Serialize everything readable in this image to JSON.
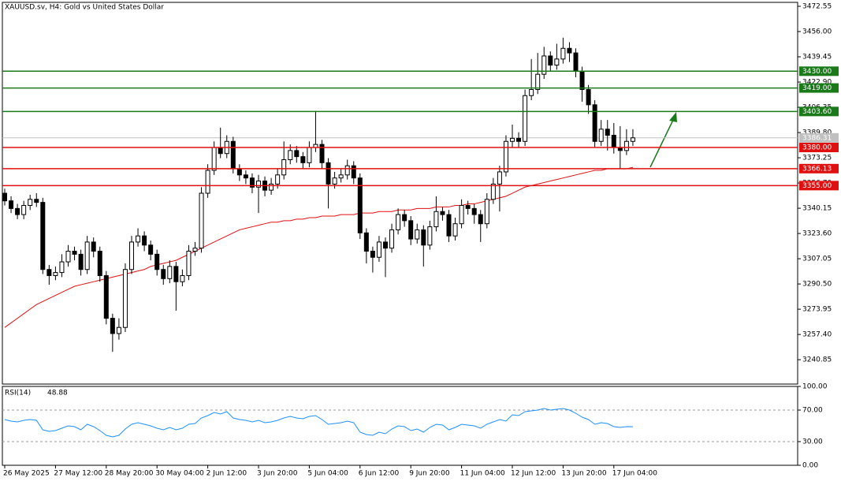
{
  "chart_data": {
    "type": "candlestick",
    "title": "XAUUSD.sv, H4:  Gold vs United States Dollar",
    "x": [
      "26 May 2025",
      null,
      null,
      null,
      null,
      null,
      null,
      null,
      "27 May 12:00",
      null,
      null,
      null,
      null,
      null,
      null,
      null,
      "28 May 20:00",
      null,
      null,
      null,
      null,
      null,
      null,
      null,
      "30 May 04:00",
      null,
      null,
      null,
      null,
      null,
      null,
      null,
      "2 Jun 12:00",
      null,
      null,
      null,
      null,
      null,
      null,
      null,
      "3 Jun 20:00",
      null,
      null,
      null,
      null,
      null,
      null,
      null,
      "5 Jun 04:00",
      null,
      null,
      null,
      null,
      null,
      null,
      null,
      "6 Jun 12:00",
      null,
      null,
      null,
      null,
      null,
      null,
      null,
      "9 Jun 20:00",
      null,
      null,
      null,
      null,
      null,
      null,
      null,
      "11 Jun 04:00",
      null,
      null,
      null,
      null,
      null,
      null,
      null,
      "12 Jun 12:00",
      null,
      null,
      null,
      null,
      null,
      null,
      null,
      "13 Jun 20:00",
      null,
      null,
      null,
      null,
      null,
      null,
      null,
      "17 Jun 04:00",
      null,
      null,
      null
    ],
    "candles": [
      [
        3350,
        3353,
        3342,
        3345
      ],
      [
        3345,
        3348,
        3337,
        3340
      ],
      [
        3340,
        3343,
        3333,
        3336
      ],
      [
        3336,
        3345,
        3333,
        3342
      ],
      [
        3342,
        3349,
        3339,
        3346
      ],
      [
        3346,
        3350,
        3341,
        3344
      ],
      [
        3344,
        3347,
        3297,
        3300
      ],
      [
        3300,
        3303,
        3290,
        3296
      ],
      [
        3296,
        3302,
        3293,
        3298
      ],
      [
        3298,
        3310,
        3295,
        3305
      ],
      [
        3305,
        3316,
        3302,
        3312
      ],
      [
        3312,
        3315,
        3306,
        3310
      ],
      [
        3310,
        3313,
        3296,
        3300
      ],
      [
        3300,
        3322,
        3297,
        3318
      ],
      [
        3318,
        3321,
        3308,
        3312
      ],
      [
        3312,
        3315,
        3292,
        3296
      ],
      [
        3296,
        3299,
        3264,
        3268
      ],
      [
        3268,
        3271,
        3246,
        3258
      ],
      [
        3258,
        3268,
        3254,
        3262
      ],
      [
        3262,
        3304,
        3259,
        3300
      ],
      [
        3300,
        3322,
        3297,
        3318
      ],
      [
        3318,
        3327,
        3315,
        3322
      ],
      [
        3322,
        3325,
        3312,
        3316
      ],
      [
        3316,
        3319,
        3306,
        3310
      ],
      [
        3310,
        3313,
        3296,
        3300
      ],
      [
        3300,
        3303,
        3290,
        3294
      ],
      [
        3294,
        3306,
        3291,
        3302
      ],
      [
        3302,
        3305,
        3273,
        3292
      ],
      [
        3292,
        3300,
        3289,
        3296
      ],
      [
        3296,
        3316,
        3293,
        3312
      ],
      [
        3312,
        3318,
        3309,
        3314
      ],
      [
        3314,
        3354,
        3311,
        3350
      ],
      [
        3350,
        3369,
        3347,
        3365
      ],
      [
        3365,
        3384,
        3362,
        3380
      ],
      [
        3380,
        3393,
        3373,
        3376
      ],
      [
        3376,
        3388,
        3373,
        3384
      ],
      [
        3384,
        3387,
        3363,
        3366
      ],
      [
        3366,
        3369,
        3358,
        3362
      ],
      [
        3362,
        3365,
        3356,
        3360
      ],
      [
        3360,
        3363,
        3350,
        3354
      ],
      [
        3354,
        3362,
        3337,
        3358
      ],
      [
        3358,
        3361,
        3348,
        3352
      ],
      [
        3352,
        3360,
        3349,
        3356
      ],
      [
        3356,
        3366,
        3353,
        3362
      ],
      [
        3362,
        3384,
        3359,
        3372
      ],
      [
        3372,
        3382,
        3369,
        3378
      ],
      [
        3378,
        3381,
        3370,
        3374
      ],
      [
        3374,
        3377,
        3366,
        3370
      ],
      [
        3370,
        3384,
        3367,
        3380
      ],
      [
        3380,
        3404,
        3377,
        3382
      ],
      [
        3382,
        3385,
        3366,
        3370
      ],
      [
        3370,
        3373,
        3340,
        3356
      ],
      [
        3356,
        3364,
        3353,
        3360
      ],
      [
        3360,
        3366,
        3357,
        3362
      ],
      [
        3362,
        3372,
        3359,
        3368
      ],
      [
        3368,
        3371,
        3356,
        3360
      ],
      [
        3360,
        3363,
        3320,
        3324
      ],
      [
        3324,
        3327,
        3304,
        3312
      ],
      [
        3312,
        3315,
        3298,
        3308
      ],
      [
        3308,
        3322,
        3305,
        3318
      ],
      [
        3318,
        3321,
        3295,
        3314
      ],
      [
        3314,
        3330,
        3311,
        3326
      ],
      [
        3326,
        3340,
        3323,
        3336
      ],
      [
        3336,
        3339,
        3328,
        3332
      ],
      [
        3332,
        3335,
        3316,
        3320
      ],
      [
        3320,
        3330,
        3317,
        3326
      ],
      [
        3326,
        3329,
        3302,
        3316
      ],
      [
        3316,
        3332,
        3313,
        3328
      ],
      [
        3328,
        3348,
        3325,
        3338
      ],
      [
        3338,
        3341,
        3332,
        3336
      ],
      [
        3336,
        3339,
        3318,
        3322
      ],
      [
        3322,
        3334,
        3319,
        3330
      ],
      [
        3330,
        3346,
        3327,
        3342
      ],
      [
        3342,
        3345,
        3336,
        3340
      ],
      [
        3340,
        3343,
        3330,
        3336
      ],
      [
        3336,
        3339,
        3318,
        3330
      ],
      [
        3330,
        3350,
        3327,
        3346
      ],
      [
        3346,
        3360,
        3343,
        3356
      ],
      [
        3356,
        3368,
        3338,
        3364
      ],
      [
        3364,
        3388,
        3361,
        3384
      ],
      [
        3384,
        3395,
        3380,
        3386
      ],
      [
        3386,
        3390,
        3380,
        3384
      ],
      [
        3384,
        3418,
        3381,
        3414
      ],
      [
        3414,
        3438,
        3411,
        3418
      ],
      [
        3418,
        3442,
        3415,
        3428
      ],
      [
        3428,
        3446,
        3425,
        3440
      ],
      [
        3440,
        3443,
        3430,
        3434
      ],
      [
        3434,
        3448,
        3431,
        3438
      ],
      [
        3438,
        3452,
        3435,
        3445
      ],
      [
        3445,
        3449,
        3436,
        3442
      ],
      [
        3442,
        3445,
        3426,
        3430
      ],
      [
        3430,
        3433,
        3410,
        3418
      ],
      [
        3418,
        3421,
        3402,
        3408
      ],
      [
        3408,
        3411,
        3380,
        3384
      ],
      [
        3384,
        3398,
        3381,
        3392
      ],
      [
        3392,
        3398,
        3378,
        3388
      ],
      [
        3388,
        3396,
        3376,
        3380
      ],
      [
        3380,
        3394,
        3366,
        3378
      ],
      [
        3378,
        3392,
        3375,
        3384
      ],
      [
        3384,
        3392,
        3381,
        3386.31
      ]
    ],
    "ma": {
      "color": "#e01010",
      "values": [
        3262,
        3265,
        3268,
        3271,
        3274,
        3277,
        3279,
        3281,
        3283,
        3285,
        3287,
        3289,
        3290,
        3291,
        3292,
        3293,
        3294,
        3295,
        3296,
        3297,
        3298,
        3299,
        3300,
        3302,
        3303,
        3304,
        3305,
        3306,
        3308,
        3310,
        3312,
        3314,
        3316,
        3318,
        3320,
        3322,
        3324,
        3326,
        3327,
        3328,
        3329,
        3330,
        3331,
        3331,
        3332,
        3332,
        3333,
        3333,
        3334,
        3334,
        3335,
        3335,
        3335,
        3336,
        3336,
        3336,
        3337,
        3337,
        3337,
        3338,
        3338,
        3338,
        3339,
        3339,
        3339,
        3340,
        3340,
        3340,
        3341,
        3341,
        3341,
        3342,
        3342,
        3343,
        3343,
        3344,
        3345,
        3346,
        3347,
        3348,
        3350,
        3352,
        3354,
        3355,
        3356,
        3357,
        3358,
        3359,
        3360,
        3361,
        3362,
        3363,
        3364,
        3365,
        3365,
        3366,
        3366,
        3366,
        3366,
        3367
      ]
    },
    "ylim": [
      3224.88,
      3475.14
    ],
    "yticks": [
      3472.55,
      {
        "value": 3456,
        "label": "3456.00"
      },
      3439.45,
      {
        "value": 3422.9,
        "label": "3422.90"
      },
      3406.35,
      {
        "value": 3389.8,
        "label": "3389.80"
      },
      3373.25,
      {
        "value": 3356.7,
        "label": "3356.70"
      },
      3340.15,
      {
        "value": 3323.6,
        "label": "3323.60"
      },
      3307.05,
      {
        "value": 3290.5,
        "label": "3290.50"
      },
      3273.95,
      {
        "value": 3257.4,
        "label": "3257.40"
      },
      3240.85
    ],
    "levels": [
      {
        "value": 3430,
        "label": "3430.00",
        "color": "#1a7a1a"
      },
      {
        "value": 3419,
        "label": "3419.00",
        "color": "#1a7a1a"
      },
      {
        "value": 3403.6,
        "label": "3403.60",
        "color": "#1a7a1a"
      },
      {
        "value": 3380,
        "label": "3380.00",
        "color": "#e01010"
      },
      {
        "value": 3366.13,
        "label": "3366.13",
        "color": "#e01010"
      },
      {
        "value": 3355,
        "label": "3355.00",
        "color": "#e01010"
      }
    ],
    "current_price": 3386.31,
    "rsi": {
      "name": "RSI(14)",
      "color": "#1e90ff",
      "ylim": [
        0,
        100
      ],
      "yticks": [
        {
          "value": 100,
          "label": "100.00"
        },
        {
          "value": 70,
          "label": "70.00"
        },
        {
          "value": 30,
          "label": "30.00"
        },
        {
          "value": 0,
          "label": "0.00"
        }
      ],
      "values": [
        58,
        56,
        55,
        57,
        58,
        57,
        45,
        43,
        44,
        47,
        50,
        49,
        45,
        52,
        49,
        44,
        38,
        36,
        38,
        46,
        52,
        54,
        52,
        50,
        47,
        45,
        48,
        45,
        47,
        52,
        53,
        60,
        63,
        67,
        65,
        68,
        60,
        58,
        57,
        55,
        57,
        54,
        55,
        57,
        60,
        62,
        60,
        59,
        62,
        63,
        58,
        52,
        53,
        54,
        56,
        54,
        42,
        39,
        38,
        42,
        40,
        46,
        50,
        49,
        44,
        46,
        42,
        48,
        52,
        51,
        45,
        48,
        52,
        51,
        50,
        47,
        52,
        55,
        58,
        56,
        64,
        63,
        68,
        69,
        70,
        72,
        70,
        71,
        72,
        70,
        66,
        61,
        58,
        52,
        54,
        53,
        49,
        48,
        49,
        48.88
      ]
    }
  }
}
